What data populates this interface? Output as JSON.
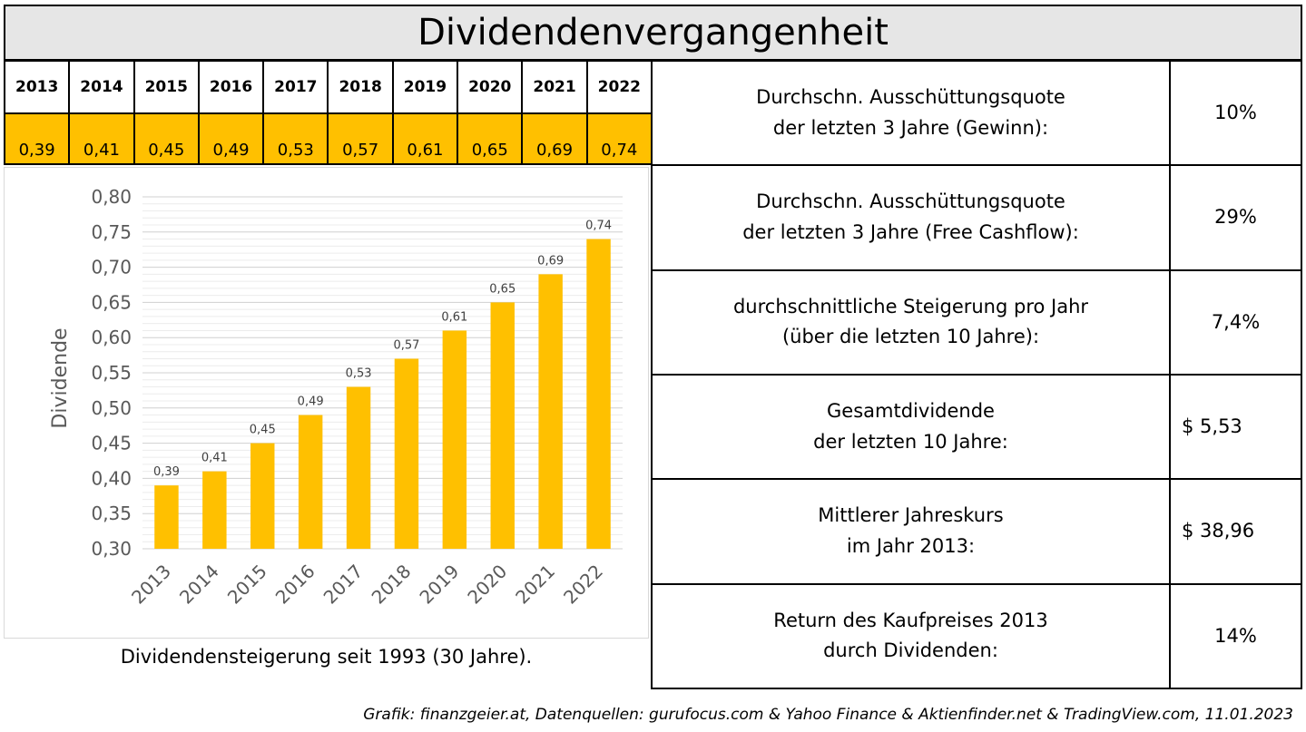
{
  "header": {
    "title": "Dividendenvergangenheit"
  },
  "year_table": {
    "years": [
      "2013",
      "2014",
      "2015",
      "2016",
      "2017",
      "2018",
      "2019",
      "2020",
      "2021",
      "2022"
    ],
    "values": [
      "0,39",
      "0,41",
      "0,45",
      "0,49",
      "0,53",
      "0,57",
      "0,61",
      "0,65",
      "0,69",
      "0,74"
    ]
  },
  "chart_data": {
    "type": "bar",
    "title": "",
    "categories": [
      "2013",
      "2014",
      "2015",
      "2016",
      "2017",
      "2018",
      "2019",
      "2020",
      "2021",
      "2022"
    ],
    "values": [
      0.39,
      0.41,
      0.45,
      0.49,
      0.53,
      0.57,
      0.61,
      0.65,
      0.69,
      0.74
    ],
    "data_labels": [
      "0,39",
      "0,41",
      "0,45",
      "0,49",
      "0,53",
      "0,57",
      "0,61",
      "0,65",
      "0,69",
      "0,74"
    ],
    "xlabel": "",
    "ylabel": "Dividende",
    "ylim": [
      0.3,
      0.8
    ],
    "yticks": [
      0.3,
      0.35,
      0.4,
      0.45,
      0.5,
      0.55,
      0.6,
      0.65,
      0.7,
      0.75,
      0.8
    ],
    "ytick_labels": [
      "0,30",
      "0,35",
      "0,40",
      "0,45",
      "0,50",
      "0,55",
      "0,60",
      "0,65",
      "0,70",
      "0,75",
      "0,80"
    ],
    "bar_color": "#ffc000",
    "grid": true,
    "legend": "none"
  },
  "chart_caption": "Dividendensteigerung seit 1993 (30 Jahre).",
  "stats": [
    {
      "label_lines": [
        "Durchschn. Ausschüttungsquote",
        "der letzten 3 Jahre (Gewinn):"
      ],
      "value": "10%"
    },
    {
      "label_lines": [
        "Durchschn. Ausschüttungsquote",
        "der letzten 3 Jahre (Free Cashflow):"
      ],
      "value": "29%"
    },
    {
      "label_lines": [
        "durchschnittliche Steigerung pro Jahr",
        "(über die letzten 10 Jahre):"
      ],
      "value": "7,4%"
    },
    {
      "label_lines": [
        "Gesamtdividende",
        "der letzten 10 Jahre:"
      ],
      "value": "$ 5,53"
    },
    {
      "label_lines": [
        "Mittlerer Jahreskurs",
        "im Jahr 2013:"
      ],
      "value": "$ 38,96"
    },
    {
      "label_lines": [
        "Return des Kaufpreises 2013",
        "durch Dividenden:"
      ],
      "value": "14%"
    }
  ],
  "footer": "Grafik: finanzgeier.at, Datenquellen: gurufocus.com & Yahoo Finance & Aktienfinder.net & TradingView.com, 11.01.2023"
}
